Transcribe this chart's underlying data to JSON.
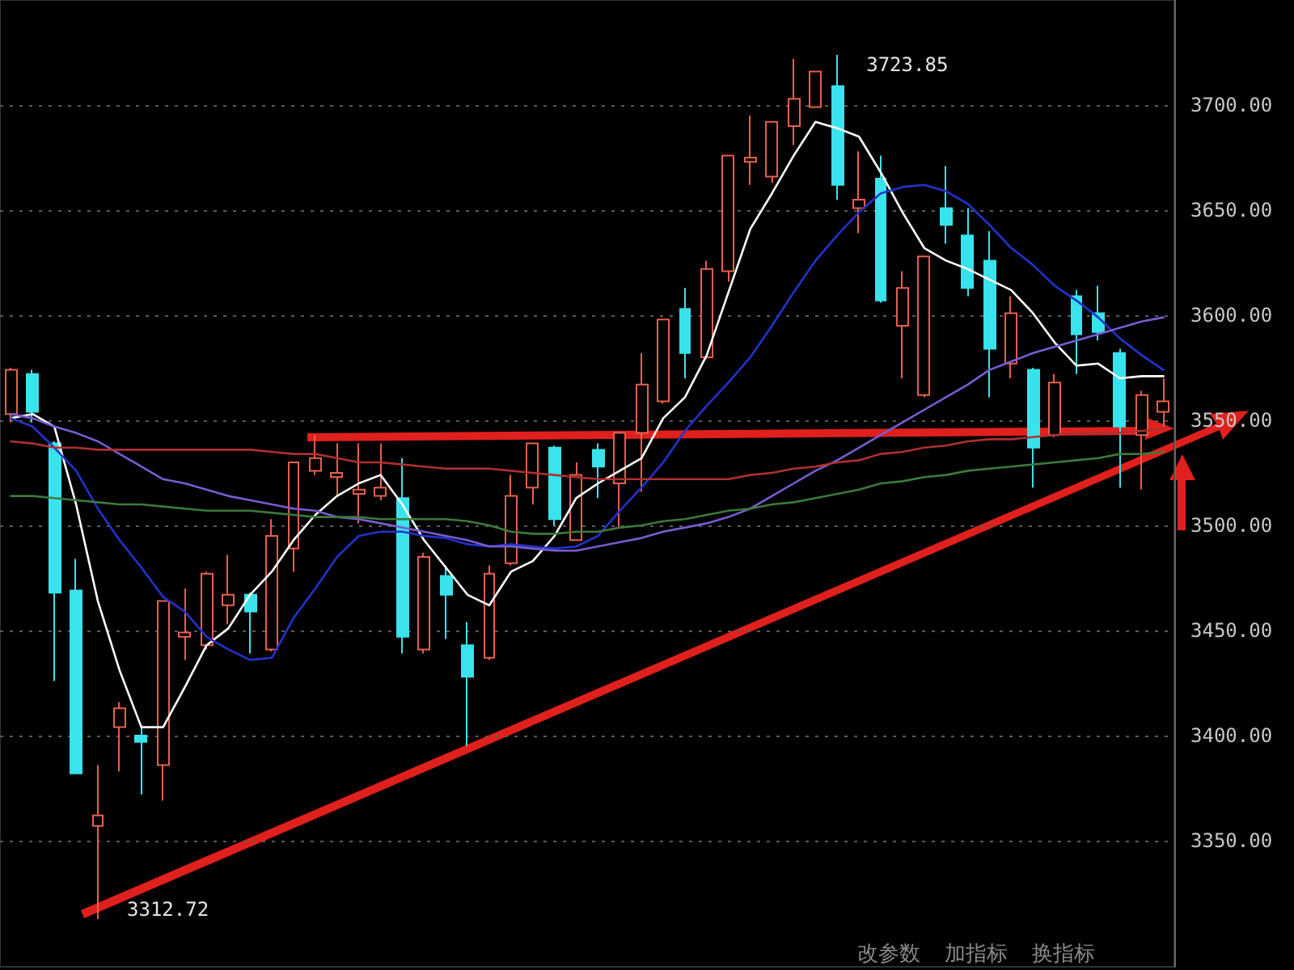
{
  "chart_data": {
    "type": "candlestick",
    "categories": [
      null,
      null,
      null,
      null,
      null,
      null,
      null,
      null,
      null,
      null,
      null,
      null,
      null,
      null,
      null,
      null,
      null,
      null,
      null,
      null,
      null,
      null,
      null,
      null,
      null,
      null,
      null,
      null,
      null,
      null,
      null,
      null,
      null,
      null,
      null,
      null,
      null,
      null,
      null,
      null,
      null,
      null,
      null,
      null,
      null,
      null,
      null,
      null,
      null,
      null,
      null,
      null,
      null,
      null
    ],
    "ylim": [
      3290,
      3750
    ],
    "yticks": [
      {
        "value": 3350,
        "label": "3350.00"
      },
      {
        "value": 3400,
        "label": "3400.00"
      },
      {
        "value": 3450,
        "label": "3450.00"
      },
      {
        "value": 3500,
        "label": "3500.00"
      },
      {
        "value": 3550,
        "label": "3550.00"
      },
      {
        "value": 3600,
        "label": "3600.00"
      },
      {
        "value": 3650,
        "label": "3650.00"
      },
      {
        "value": 3700,
        "label": "3700.00"
      }
    ],
    "grid": "y",
    "tick_labels": "y",
    "annotations": [
      "3723.85",
      "3312.72",
      "改参数",
      "加指标",
      "换指标"
    ],
    "series": [
      {
        "type": "candlestick",
        "ohlc": [
          [
            3553,
            3575,
            3549,
            3574
          ],
          [
            3572,
            3574,
            3549,
            3554
          ],
          [
            3539,
            3540,
            3426,
            3468
          ],
          [
            3469,
            3484,
            3382,
            3382
          ],
          [
            3357,
            3386,
            3312.72,
            3362
          ],
          [
            3404,
            3416,
            3383,
            3413
          ],
          [
            3400,
            3405,
            3372,
            3397
          ],
          [
            3386,
            3464,
            3369,
            3464
          ],
          [
            3447,
            3470,
            3436,
            3449
          ],
          [
            3443,
            3478,
            3441,
            3477
          ],
          [
            3462,
            3486,
            3453,
            3467
          ],
          [
            3467,
            3468,
            3439,
            3459
          ],
          [
            3441,
            3503,
            3440,
            3495
          ],
          [
            3489,
            3530,
            3478,
            3530
          ],
          [
            3526,
            3543,
            3524,
            3532
          ],
          [
            3523,
            3539,
            3514,
            3525
          ],
          [
            3515,
            3539,
            3501,
            3517
          ],
          [
            3514,
            3539,
            3512,
            3518
          ],
          [
            3513,
            3532,
            3439,
            3447
          ],
          [
            3441,
            3487,
            3439,
            3485
          ],
          [
            3476,
            3481,
            3446,
            3467
          ],
          [
            3443,
            3454,
            3395,
            3428
          ],
          [
            3437,
            3481,
            3436,
            3477
          ],
          [
            3482,
            3524,
            3481,
            3514
          ],
          [
            3518,
            3539,
            3510,
            3539
          ],
          [
            3537,
            3538,
            3500,
            3503
          ],
          [
            3493,
            3530,
            3493,
            3524
          ],
          [
            3536,
            3539,
            3513,
            3528
          ],
          [
            3520,
            3544,
            3499,
            3544
          ],
          [
            3544,
            3582,
            3516,
            3567
          ],
          [
            3559,
            3598,
            3558,
            3598
          ],
          [
            3603,
            3613,
            3570,
            3582
          ],
          [
            3580,
            3626,
            3579,
            3622
          ],
          [
            3621,
            3676,
            3616,
            3676
          ],
          [
            3673,
            3695,
            3662,
            3675
          ],
          [
            3666,
            3692,
            3663,
            3692
          ],
          [
            3690,
            3722,
            3681,
            3703
          ],
          [
            3699,
            3716,
            3699,
            3716
          ],
          [
            3709,
            3723.85,
            3655,
            3662
          ],
          [
            3651,
            3678,
            3639,
            3655
          ],
          [
            3665,
            3676,
            3606,
            3607
          ],
          [
            3595,
            3621,
            3570,
            3613
          ],
          [
            3562,
            3628,
            3561,
            3628
          ],
          [
            3651,
            3671,
            3634,
            3643
          ],
          [
            3638,
            3651,
            3609,
            3613
          ],
          [
            3626,
            3640,
            3561,
            3584
          ],
          [
            3577,
            3609,
            3570,
            3601
          ],
          [
            3574,
            3575,
            3518,
            3537
          ],
          [
            3543,
            3572,
            3542,
            3568
          ],
          [
            3609,
            3612,
            3572,
            3591
          ],
          [
            3601,
            3614,
            3588,
            3592
          ],
          [
            3582,
            3584,
            3518,
            3547
          ],
          [
            3543,
            3564,
            3517,
            3562
          ],
          [
            3554,
            3570,
            3547,
            3559
          ]
        ],
        "colors": [
          "#e8604c",
          "#39e3ec",
          "#39e3ec",
          "#39e3ec",
          "#e8604c",
          "#e8604c",
          "#39e3ec",
          "#e8604c",
          "#e8604c",
          "#e8604c",
          "#e8604c",
          "#39e3ec",
          "#e8604c",
          "#e8604c",
          "#e8604c",
          "#e8604c",
          "#e8604c",
          "#e8604c",
          "#39e3ec",
          "#e8604c",
          "#39e3ec",
          "#39e3ec",
          "#e8604c",
          "#e8604c",
          "#e8604c",
          "#39e3ec",
          "#e8604c",
          "#39e3ec",
          "#e8604c",
          "#e8604c",
          "#e8604c",
          "#39e3ec",
          "#e8604c",
          "#e8604c",
          "#e8604c",
          "#e8604c",
          "#e8604c",
          "#e8604c",
          "#39e3ec",
          "#e8604c",
          "#39e3ec",
          "#e8604c",
          "#e8604c",
          "#39e3ec",
          "#39e3ec",
          "#39e3ec",
          "#e8604c",
          "#39e3ec",
          "#e8604c",
          "#39e3ec",
          "#39e3ec",
          "#39e3ec",
          "#e8604c",
          "#e8604c"
        ]
      },
      {
        "type": "line",
        "color": "#ffffff",
        "values": [
          3551,
          3553,
          3547,
          3510,
          3464,
          3431,
          3404,
          3404,
          3423,
          3443,
          3451,
          3467,
          3478,
          3493,
          3505,
          3514,
          3520,
          3524,
          3510,
          3493,
          3480,
          3467,
          3462,
          3478,
          3483,
          3495,
          3513,
          3520,
          3526,
          3532,
          3551,
          3561,
          3581,
          3611,
          3641,
          3658,
          3676,
          3692,
          3689,
          3685,
          3668,
          3649,
          3632,
          3626,
          3622,
          3617,
          3612,
          3601,
          3587,
          3576,
          3577,
          3570,
          3571,
          3571
        ]
      },
      {
        "type": "line",
        "color": "#2233cc",
        "values": [
          3551,
          3547,
          3537,
          3526,
          3508,
          3493,
          3480,
          3466,
          3459,
          3447,
          3441,
          3436,
          3437,
          3456,
          3470,
          3485,
          3495,
          3497,
          3497,
          3495,
          3494,
          3491,
          3490,
          3491,
          3490,
          3489,
          3490,
          3495,
          3507,
          3518,
          3530,
          3545,
          3557,
          3568,
          3580,
          3595,
          3611,
          3626,
          3638,
          3649,
          3658,
          3661,
          3662,
          3659,
          3653,
          3643,
          3632,
          3624,
          3614,
          3607,
          3599,
          3589,
          3581,
          3574
        ]
      },
      {
        "type": "line",
        "color": "#7a5cd0",
        "values": [
          3553,
          3551,
          3547,
          3544,
          3540,
          3534,
          3528,
          3522,
          3520,
          3517,
          3514,
          3512,
          3510,
          3508,
          3507,
          3504,
          3503,
          3501,
          3499,
          3497,
          3495,
          3493,
          3490,
          3490,
          3489,
          3488,
          3488,
          3490,
          3492,
          3494,
          3497,
          3499,
          3501,
          3504,
          3508,
          3514,
          3520,
          3526,
          3531,
          3537,
          3543,
          3549,
          3555,
          3561,
          3567,
          3574,
          3578,
          3582,
          3585,
          3588,
          3591,
          3594,
          3597,
          3599
        ]
      },
      {
        "type": "line",
        "color": "#b03030",
        "values": [
          3540,
          3539,
          3537,
          3537,
          3536,
          3536,
          3536,
          3536,
          3536,
          3536,
          3536,
          3536,
          3535,
          3534,
          3534,
          3532,
          3530,
          3530,
          3529,
          3528,
          3527,
          3527,
          3527,
          3526,
          3525,
          3524,
          3523,
          3522,
          3522,
          3522,
          3522,
          3522,
          3522,
          3522,
          3524,
          3525,
          3527,
          3528,
          3530,
          3531,
          3534,
          3535,
          3537,
          3538,
          3540,
          3541,
          3541,
          3542,
          3543,
          3544,
          3544,
          3544,
          3545,
          3546
        ]
      },
      {
        "type": "line",
        "color": "#3c7a3c",
        "values": [
          3514,
          3514,
          3513,
          3512,
          3511,
          3510,
          3510,
          3509,
          3508,
          3507,
          3507,
          3507,
          3506,
          3505,
          3504,
          3504,
          3504,
          3503,
          3503,
          3503,
          3503,
          3502,
          3500,
          3497,
          3496,
          3496,
          3497,
          3497,
          3499,
          3500,
          3502,
          3503,
          3505,
          3507,
          3508,
          3510,
          3511,
          3513,
          3515,
          3517,
          3520,
          3521,
          3523,
          3524,
          3526,
          3527,
          3528,
          3529,
          3530,
          3531,
          3532,
          3534,
          3534,
          3535
        ]
      }
    ]
  }
}
